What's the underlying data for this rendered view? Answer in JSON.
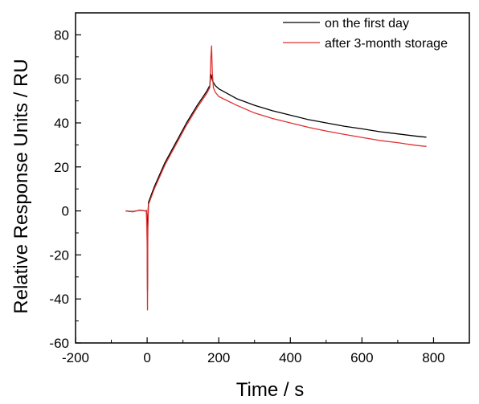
{
  "chart_data": {
    "type": "line",
    "title": "",
    "xlabel": "Time / s",
    "ylabel": "Relative Response Units / RU",
    "xlim": [
      -200,
      900
    ],
    "ylim": [
      -60,
      90
    ],
    "x_ticks": [
      -200,
      0,
      200,
      400,
      600,
      800
    ],
    "y_ticks": [
      -60,
      -40,
      -20,
      0,
      20,
      40,
      60,
      80
    ],
    "grid": false,
    "legend_position": "top-right",
    "series": [
      {
        "name": "on the first day",
        "color": "#000000",
        "points": [
          [
            -60,
            0
          ],
          [
            -40,
            -0.3
          ],
          [
            -20,
            0.3
          ],
          [
            -5,
            0
          ],
          [
            -2,
            0.2
          ],
          [
            0,
            -8
          ],
          [
            1,
            -36
          ],
          [
            2,
            -2
          ],
          [
            4,
            4
          ],
          [
            20,
            11
          ],
          [
            50,
            22
          ],
          [
            80,
            31
          ],
          [
            110,
            40
          ],
          [
            140,
            48
          ],
          [
            165,
            54
          ],
          [
            175,
            57
          ],
          [
            178,
            62
          ],
          [
            180,
            61
          ],
          [
            183,
            59
          ],
          [
            190,
            57
          ],
          [
            200,
            55.5
          ],
          [
            250,
            51
          ],
          [
            300,
            48
          ],
          [
            350,
            45.5
          ],
          [
            400,
            43.5
          ],
          [
            450,
            41.5
          ],
          [
            500,
            40
          ],
          [
            550,
            38.5
          ],
          [
            600,
            37.3
          ],
          [
            650,
            36
          ],
          [
            700,
            35
          ],
          [
            750,
            34
          ],
          [
            780,
            33.5
          ]
        ]
      },
      {
        "name": "after 3-month storage",
        "color": "#e03030",
        "points": [
          [
            -60,
            0
          ],
          [
            -40,
            -0.4
          ],
          [
            -20,
            0.4
          ],
          [
            -5,
            0
          ],
          [
            -2,
            0.2
          ],
          [
            0,
            -15
          ],
          [
            1,
            -45
          ],
          [
            2,
            -8
          ],
          [
            4,
            3
          ],
          [
            20,
            10
          ],
          [
            50,
            21
          ],
          [
            80,
            30
          ],
          [
            110,
            39
          ],
          [
            140,
            47
          ],
          [
            165,
            53
          ],
          [
            175,
            56
          ],
          [
            178,
            70
          ],
          [
            180,
            75
          ],
          [
            182,
            63
          ],
          [
            185,
            56
          ],
          [
            190,
            54
          ],
          [
            200,
            52
          ],
          [
            250,
            48
          ],
          [
            300,
            44.5
          ],
          [
            350,
            42
          ],
          [
            400,
            40
          ],
          [
            450,
            38
          ],
          [
            500,
            36.3
          ],
          [
            550,
            34.8
          ],
          [
            600,
            33.4
          ],
          [
            650,
            32
          ],
          [
            700,
            31
          ],
          [
            750,
            29.8
          ],
          [
            780,
            29.3
          ]
        ]
      }
    ]
  }
}
